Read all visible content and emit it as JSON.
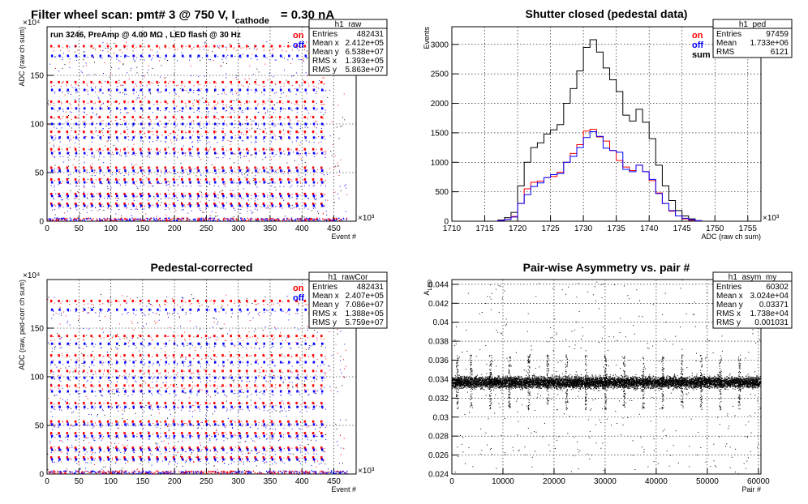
{
  "figure_title": {
    "main": "Filter wheel scan: pmt#   3 @   750 V, I",
    "sub": "cathode",
    "tail": "= 0.30 nA"
  },
  "chart_data": [
    {
      "id": "raw",
      "type": "scatter",
      "title": "",
      "xlabel": "Event #",
      "ylabel": "ADC (raw ch sum)",
      "x_multiplier": "×10³",
      "y_multiplier": "×10⁴",
      "xlim": [
        0,
        485
      ],
      "ylim": [
        0,
        200
      ],
      "xticks": [
        0,
        50,
        100,
        150,
        200,
        250,
        300,
        350,
        400,
        450
      ],
      "yticks": [
        0,
        50,
        100,
        150
      ],
      "annotation": "run 3246, PreAmp @ 4.00 MΩ , LED flash @  30 Hz",
      "legend": [
        {
          "label": "on",
          "color": "#ff0000"
        },
        {
          "label": "off",
          "color": "#0000ff"
        }
      ],
      "stats": {
        "name": "h1_raw",
        "rows": [
          [
            "Entries",
            "482431"
          ],
          [
            "Mean x",
            "2.412e+05"
          ],
          [
            "Mean y",
            "6.538e+07"
          ],
          [
            "RMS x",
            "1.393e+05"
          ],
          [
            "RMS y",
            "5.863e+07"
          ]
        ]
      },
      "series": [
        {
          "name": "on",
          "color": "#ff0000",
          "levels": [
            180,
            143,
            123,
            107,
            92,
            74,
            55,
            43,
            28,
            18
          ]
        },
        {
          "name": "off",
          "color": "#0000ff",
          "levels": [
            170,
            135,
            116,
            100,
            86,
            70,
            52,
            40,
            26,
            16
          ]
        }
      ],
      "x_clusters": [
        5,
        17,
        30,
        43,
        56,
        68,
        81,
        94,
        107,
        120,
        133,
        145,
        158,
        171,
        184,
        197,
        210,
        222,
        235,
        248,
        261,
        274,
        287,
        300,
        312,
        325,
        338,
        351,
        364,
        377,
        390,
        403,
        416,
        429
      ]
    },
    {
      "id": "ped",
      "type": "line",
      "title": "Shutter closed (pedestal data)",
      "xlabel": "ADC (raw ch sum)",
      "ylabel": "Events",
      "x_multiplier": "×10³",
      "xlim": [
        1710,
        1757
      ],
      "ylim": [
        0,
        3300
      ],
      "xticks": [
        1710,
        1715,
        1720,
        1725,
        1730,
        1735,
        1740,
        1745,
        1750,
        1755
      ],
      "yticks": [
        0,
        500,
        1000,
        1500,
        2000,
        2500,
        3000
      ],
      "legend": [
        {
          "label": "on",
          "color": "#ff0000"
        },
        {
          "label": "off",
          "color": "#0000ff"
        },
        {
          "label": "sum",
          "color": "#000000"
        }
      ],
      "stats": {
        "name": "h1_ped",
        "rows": [
          [
            "Entries",
            "97459"
          ],
          [
            "Mean",
            "1.733e+06"
          ],
          [
            "RMS",
            "6121"
          ]
        ]
      },
      "x": [
        1717.5,
        1718.5,
        1719.5,
        1720.5,
        1721.5,
        1722.5,
        1723.5,
        1724.5,
        1725.5,
        1726.5,
        1727.5,
        1728.5,
        1729.5,
        1730.5,
        1731.5,
        1732.5,
        1733.5,
        1734.5,
        1735.5,
        1736.5,
        1737.5,
        1738.5,
        1739.5,
        1740.5,
        1741.5,
        1742.5,
        1743.5,
        1744.5,
        1745.5,
        1746.5,
        1747.5
      ],
      "series": [
        {
          "name": "sum",
          "color": "#000000",
          "values": [
            20,
            60,
            150,
            600,
            1000,
            1250,
            1330,
            1480,
            1550,
            1640,
            2000,
            2250,
            2550,
            2950,
            3080,
            2870,
            2600,
            2400,
            2200,
            1800,
            1700,
            1900,
            1680,
            1400,
            950,
            600,
            350,
            180,
            90,
            40,
            10
          ]
        },
        {
          "name": "on",
          "color": "#ff0000",
          "values": [
            10,
            30,
            80,
            300,
            550,
            660,
            680,
            740,
            760,
            830,
            1000,
            1150,
            1300,
            1530,
            1560,
            1430,
            1360,
            1200,
            1030,
            920,
            860,
            950,
            840,
            690,
            480,
            300,
            170,
            90,
            40,
            15,
            5
          ]
        },
        {
          "name": "off",
          "color": "#0000ff",
          "values": [
            10,
            30,
            70,
            300,
            450,
            590,
            650,
            740,
            790,
            810,
            1000,
            1100,
            1250,
            1420,
            1520,
            1440,
            1240,
            1200,
            1170,
            880,
            840,
            950,
            840,
            710,
            470,
            300,
            180,
            90,
            50,
            25,
            5
          ]
        }
      ]
    },
    {
      "id": "rawCor",
      "type": "scatter",
      "title": "Pedestal-corrected",
      "xlabel": "Event #",
      "ylabel": "ADC (raw, ped-corr ch sum)",
      "x_multiplier": "×10³",
      "y_multiplier": "×10⁴",
      "xlim": [
        0,
        485
      ],
      "ylim": [
        0,
        200
      ],
      "xticks": [
        0,
        50,
        100,
        150,
        200,
        250,
        300,
        350,
        400,
        450
      ],
      "yticks": [
        0,
        50,
        100,
        150
      ],
      "legend": [
        {
          "label": "on",
          "color": "#ff0000"
        },
        {
          "label": "off",
          "color": "#0000ff"
        }
      ],
      "stats": {
        "name": "h1_rawCor",
        "rows": [
          [
            "Entries",
            "482431"
          ],
          [
            "Mean x",
            "2.407e+05"
          ],
          [
            "Mean y",
            "7.086e+07"
          ],
          [
            "RMS x",
            "1.388e+05"
          ],
          [
            "RMS y",
            "5.759e+07"
          ]
        ]
      },
      "series": [
        {
          "name": "on",
          "color": "#ff0000",
          "levels": [
            178,
            142,
            122,
            106,
            91,
            73,
            54,
            42,
            27,
            17
          ]
        },
        {
          "name": "off",
          "color": "#0000ff",
          "levels": [
            169,
            134,
            115,
            99,
            85,
            69,
            51,
            39,
            25,
            15
          ]
        }
      ],
      "x_clusters": [
        5,
        17,
        30,
        43,
        56,
        68,
        81,
        94,
        107,
        120,
        133,
        145,
        158,
        171,
        184,
        197,
        210,
        222,
        235,
        248,
        261,
        274,
        287,
        300,
        312,
        325,
        338,
        351,
        364,
        377,
        390,
        403,
        416,
        429
      ]
    },
    {
      "id": "asym",
      "type": "scatter",
      "title": "Pair-wise Asymmetry vs. pair #",
      "xlabel": "Pair #",
      "ylabel": "A",
      "ylabel_sub": "LED",
      "xlim": [
        0,
        60500
      ],
      "ylim": [
        0.024,
        0.0445
      ],
      "xticks": [
        0,
        10000,
        20000,
        30000,
        40000,
        50000,
        60000
      ],
      "yticks": [
        0.024,
        0.026,
        0.028,
        0.03,
        0.032,
        0.034,
        0.036,
        0.038,
        0.04,
        0.042,
        0.044
      ],
      "stats": {
        "name": "h1_asym_my",
        "rows": [
          [
            "Entries",
            "60302"
          ],
          [
            "Mean x",
            "3.024e+04"
          ],
          [
            "Mean y",
            "0.03371"
          ],
          [
            "RMS x",
            "1.738e+04"
          ],
          [
            "RMS y",
            "0.001031"
          ]
        ]
      },
      "band_center": 0.0337,
      "band_halfwidth": 0.0006,
      "spike_x": [
        1000,
        3700,
        7500,
        11200,
        15000,
        18700,
        22400,
        26200,
        30000,
        33700,
        37400,
        41200,
        45000,
        48700,
        52500,
        56200
      ]
    }
  ]
}
